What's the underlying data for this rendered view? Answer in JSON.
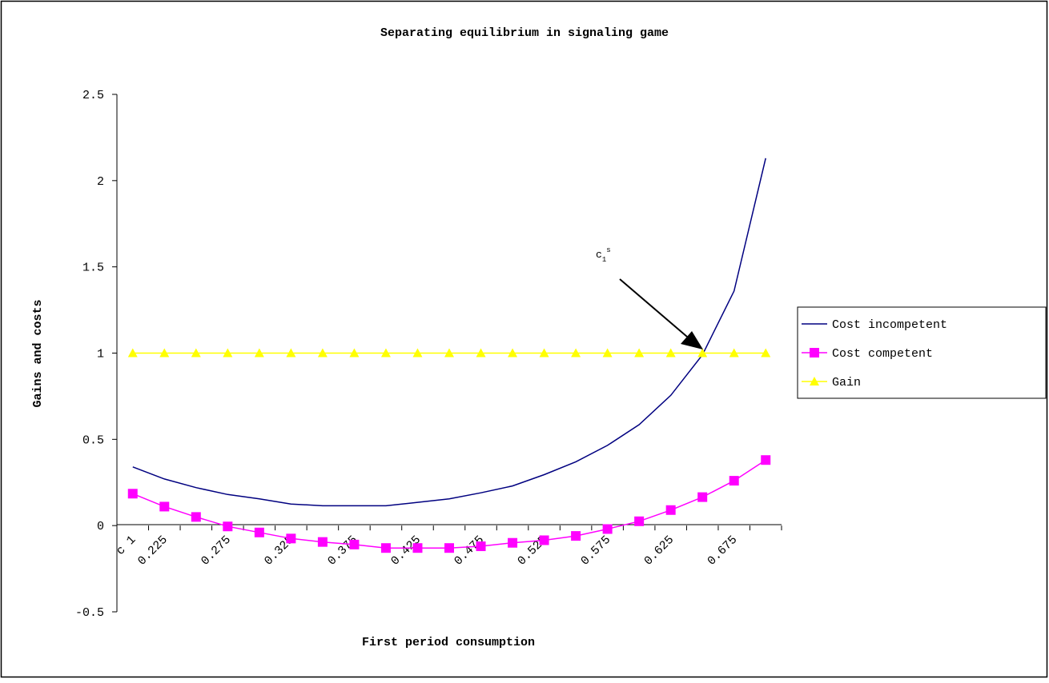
{
  "chart_data": {
    "type": "line",
    "title": "Separating equilibrium in signaling game",
    "xlabel": "First period consumption",
    "ylabel": "Gains and costs",
    "ylim": [
      -0.5,
      2.5
    ],
    "y_ticks": [
      "-0.5",
      "0",
      "0.5",
      "1",
      "1.5",
      "2",
      "2.5"
    ],
    "y_tick_values": [
      -0.5,
      0,
      0.5,
      1,
      1.5,
      2,
      2.5
    ],
    "x": [
      0.2,
      0.225,
      0.25,
      0.275,
      0.3,
      0.325,
      0.35,
      0.375,
      0.4,
      0.425,
      0.45,
      0.475,
      0.5,
      0.525,
      0.55,
      0.575,
      0.6,
      0.625,
      0.65,
      0.675,
      0.7
    ],
    "x_tick_labels": [
      {
        "x": 0.2,
        "label": "c 1"
      },
      {
        "x": 0.225,
        "label": "0.225"
      },
      {
        "x": 0.275,
        "label": "0.275"
      },
      {
        "x": 0.325,
        "label": "0.325"
      },
      {
        "x": 0.375,
        "label": "0.375"
      },
      {
        "x": 0.425,
        "label": "0.425"
      },
      {
        "x": 0.475,
        "label": "0.475"
      },
      {
        "x": 0.525,
        "label": "0.525"
      },
      {
        "x": 0.575,
        "label": "0.575"
      },
      {
        "x": 0.625,
        "label": "0.625"
      },
      {
        "x": 0.675,
        "label": "0.675"
      }
    ],
    "series": [
      {
        "name": "Cost incompetent",
        "color": "#000080",
        "marker": "none",
        "values": [
          0.34,
          0.27,
          0.22,
          0.18,
          0.155,
          0.125,
          0.115,
          0.115,
          0.115,
          0.135,
          0.155,
          0.19,
          0.23,
          0.295,
          0.37,
          0.465,
          0.585,
          0.755,
          0.99,
          1.36,
          2.13
        ]
      },
      {
        "name": "Cost competent",
        "color": "#ff00ff",
        "marker": "square",
        "values": [
          0.185,
          0.11,
          0.05,
          -0.005,
          -0.04,
          -0.075,
          -0.095,
          -0.11,
          -0.13,
          -0.13,
          -0.13,
          -0.12,
          -0.1,
          -0.085,
          -0.06,
          -0.02,
          0.025,
          0.09,
          0.165,
          0.26,
          0.38
        ]
      },
      {
        "name": "Gain",
        "color": "#ffff00",
        "marker": "triangle",
        "values": [
          1,
          1,
          1,
          1,
          1,
          1,
          1,
          1,
          1,
          1,
          1,
          1,
          1,
          1,
          1,
          1,
          1,
          1,
          1,
          1,
          1
        ]
      }
    ],
    "legend_position": "right",
    "grid": false,
    "annotation": {
      "text_main": "c",
      "text_sub": "1",
      "text_sup": "s",
      "target": {
        "x": 0.65,
        "y": 1
      }
    }
  }
}
